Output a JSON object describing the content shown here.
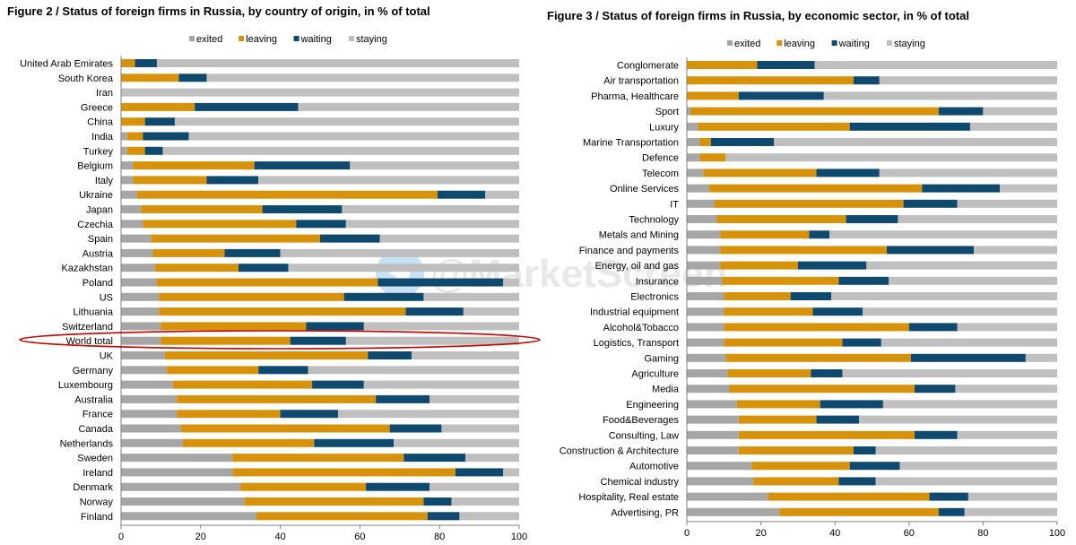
{
  "colors": {
    "exited": "#a6a6a6",
    "leaving": "#d5920a",
    "waiting": "#0f4a6e",
    "staying": "#bfbfbf",
    "highlight": "#c00000"
  },
  "watermark": {
    "text": "@MarketScreen",
    "icon": "telegram-icon"
  },
  "chart_data": [
    {
      "type": "bar",
      "orientation": "horizontal",
      "stacked": true,
      "title": "Figure 2 / Status of foreign firms in Russia, by country of origin, in % of total",
      "legend": [
        "exited",
        "leaving",
        "waiting",
        "staying"
      ],
      "xlim": [
        0,
        100
      ],
      "xticks": [
        0,
        20,
        40,
        60,
        80,
        100
      ],
      "highlighted_category": "World total",
      "categories": [
        "United Arab Emirates",
        "South Korea",
        "Iran",
        "Greece",
        "China",
        "India",
        "Turkey",
        "Belgium",
        "Italy",
        "Ukraine",
        "Japan",
        "Czechia",
        "Spain",
        "Austria",
        "Kazakhstan",
        "Poland",
        "US",
        "Lithuania",
        "Switzerland",
        "World total",
        "UK",
        "Germany",
        "Luxembourg",
        "Australia",
        "France",
        "Canada",
        "Netherlands",
        "Sweden",
        "Ireland",
        "Denmark",
        "Norway",
        "Finland"
      ],
      "series": [
        {
          "name": "exited",
          "values": [
            0,
            0,
            0,
            0,
            0,
            1.5,
            1.5,
            3,
            3,
            4,
            5,
            5.5,
            7.5,
            8,
            8.5,
            9,
            9.5,
            9.5,
            10,
            10,
            11,
            11.5,
            13,
            14,
            14,
            15,
            15.5,
            28,
            28,
            30,
            31,
            34
          ]
        },
        {
          "name": "leaving",
          "values": [
            3.5,
            14.5,
            0,
            18.5,
            6,
            4,
            4.5,
            30.5,
            18.5,
            75.5,
            30.5,
            38.5,
            42.5,
            18,
            21,
            55.5,
            46.5,
            62,
            36.5,
            32.5,
            51,
            23,
            35,
            50,
            26,
            52.5,
            33,
            43,
            56,
            31.5,
            45,
            43
          ]
        },
        {
          "name": "waiting",
          "values": [
            5.5,
            7,
            0,
            26,
            7.5,
            11.5,
            4.5,
            24,
            13,
            12,
            20,
            12.5,
            15,
            14,
            12.5,
            31.5,
            20,
            14.5,
            14.5,
            14,
            11,
            12.5,
            13,
            13.5,
            14.5,
            13,
            20,
            15.5,
            12,
            16,
            7,
            8
          ]
        },
        {
          "name": "staying",
          "values": [
            91,
            78.5,
            100,
            55.5,
            86.5,
            83,
            89.5,
            42.5,
            65.5,
            8.5,
            44.5,
            43.5,
            35,
            60,
            58,
            4,
            24,
            14,
            39,
            43.5,
            27,
            53,
            39,
            22.5,
            45.5,
            19.5,
            31.5,
            13.5,
            4,
            22.5,
            17,
            15
          ]
        }
      ]
    },
    {
      "type": "bar",
      "orientation": "horizontal",
      "stacked": true,
      "title": "Figure 3 / Status of foreign firms in Russia, by economic sector, in % of total",
      "legend": [
        "exited",
        "leaving",
        "waiting",
        "staying"
      ],
      "xlim": [
        0,
        100
      ],
      "xticks": [
        0,
        20,
        40,
        60,
        80,
        100
      ],
      "categories": [
        "Conglomerate",
        "Air transportation",
        "Pharma, Healthcare",
        "Sport",
        "Luxury",
        "Marine Transportation",
        "Defence",
        "Telecom",
        "Online Services",
        "IT",
        "Technology",
        "Metals and Mining",
        "Finance and payments",
        "Energy, oil and gas",
        "Insurance",
        "Electronics",
        "Industrial equipment",
        "Alcohol&Tobacco",
        "Logistics, Transport",
        "Gaming",
        "Agriculture",
        "Media",
        "Engineering",
        "Food&Beverages",
        "Consulting, Law",
        "Construction & Architecture",
        "Automotive",
        "Chemical industry",
        "Hospitality, Real estate",
        "Advertising, PR"
      ],
      "series": [
        {
          "name": "exited",
          "values": [
            0,
            0,
            0,
            1,
            3,
            3.5,
            3.5,
            4.5,
            6,
            7.5,
            8,
            9,
            9,
            9,
            9.5,
            10,
            10,
            10,
            10,
            10.5,
            11,
            11.5,
            13.5,
            14,
            14,
            14,
            17.5,
            18,
            22,
            25
          ]
        },
        {
          "name": "leaving",
          "values": [
            19,
            45,
            14,
            67,
            41,
            3,
            7,
            30.5,
            57.5,
            51,
            35,
            24,
            45,
            21,
            31.5,
            18,
            24,
            50,
            32,
            50,
            22.5,
            50,
            22.5,
            21,
            47.5,
            31,
            26.5,
            23,
            43.5,
            43
          ]
        },
        {
          "name": "waiting",
          "values": [
            15.5,
            7,
            23,
            12,
            32.5,
            17,
            0,
            17,
            21,
            14.5,
            14,
            5.5,
            23.5,
            18.5,
            13.5,
            11,
            13.5,
            13,
            10.5,
            31,
            8.5,
            11,
            17,
            11.5,
            11.5,
            6,
            13.5,
            10,
            10.5,
            7
          ]
        },
        {
          "name": "staying",
          "values": [
            65.5,
            48,
            63,
            20,
            23.5,
            76.5,
            89.5,
            48,
            15.5,
            27,
            43,
            61.5,
            22.5,
            51.5,
            45.5,
            61,
            52.5,
            27,
            47.5,
            8.5,
            58,
            27.5,
            47,
            53.5,
            27,
            49,
            42.5,
            49,
            24,
            25
          ]
        }
      ]
    }
  ]
}
